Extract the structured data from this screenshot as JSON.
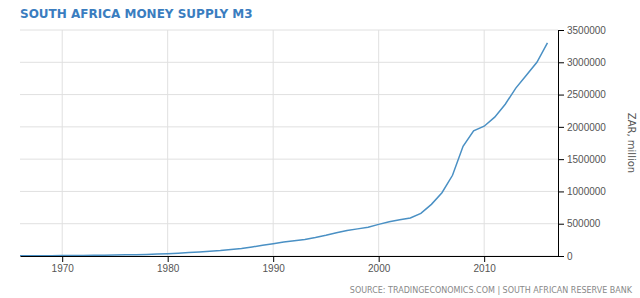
{
  "chart_data": {
    "type": "line",
    "title": "SOUTH AFRICA MONEY SUPPLY M3",
    "ylabel": "ZAR, million",
    "source": "SOURCE: TRADINGECONOMICS.COM | SOUTH AFRICAN RESERVE BANK",
    "color": "#4a90c4",
    "grid": true,
    "x": [
      1966,
      1967,
      1968,
      1969,
      1970,
      1971,
      1972,
      1973,
      1974,
      1975,
      1976,
      1977,
      1978,
      1979,
      1980,
      1981,
      1982,
      1983,
      1984,
      1985,
      1986,
      1987,
      1988,
      1989,
      1990,
      1991,
      1992,
      1993,
      1994,
      1995,
      1996,
      1997,
      1998,
      1999,
      2000,
      2001,
      2002,
      2003,
      2004,
      2005,
      2006,
      2007,
      2008,
      2009,
      2010,
      2011,
      2012,
      2013,
      2014,
      2015,
      2016
    ],
    "values": [
      4000,
      4500,
      5000,
      5800,
      6500,
      7500,
      9000,
      10500,
      13000,
      15000,
      18000,
      21000,
      25000,
      30000,
      36000,
      44000,
      54000,
      63000,
      75000,
      85000,
      100000,
      116000,
      140000,
      165000,
      190000,
      215000,
      235000,
      255000,
      285000,
      320000,
      360000,
      395000,
      420000,
      445000,
      490000,
      530000,
      560000,
      590000,
      660000,
      800000,
      980000,
      1250000,
      1700000,
      1940000,
      2010000,
      2150000,
      2350000,
      2600000,
      2800000,
      3000000,
      3300000
    ],
    "xlim": [
      1966,
      2017
    ],
    "xticks": [
      1970,
      1980,
      1990,
      2000,
      2010
    ],
    "ylim": [
      0,
      3500000
    ],
    "yticks": [
      0,
      500000,
      1000000,
      1500000,
      2000000,
      2500000,
      3000000,
      3500000
    ]
  }
}
